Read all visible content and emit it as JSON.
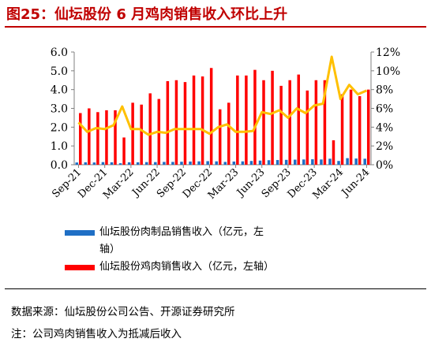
{
  "title": "图25：仙坛股份 6 月鸡肉销售收入环比上升",
  "colors": {
    "title": "#c00000",
    "blue_bar": "#1f6fc5",
    "red_bar": "#ff0000",
    "line": "#ffc000"
  },
  "legend": [
    {
      "label_line1": "仙坛股份肉制品销售收入（亿元，左",
      "label_line2": "轴）",
      "color": "#1f6fc5"
    },
    {
      "label_line1": "仙坛股份鸡肉销售收入（亿元，左轴）",
      "label_line2": "",
      "color": "#ff0000"
    }
  ],
  "source": "数据来源：仙坛股份公司公告、开源证券研究所",
  "note": "注：公司鸡肉销售收入为抵减后收入",
  "chart_data": {
    "type": "bar",
    "categories": [
      "Sep-21",
      "Oct-21",
      "Nov-21",
      "Dec-21",
      "Jan-22",
      "Feb-22",
      "Mar-22",
      "Apr-22",
      "May-22",
      "Jun-22",
      "Jul-22",
      "Aug-22",
      "Sep-22",
      "Oct-22",
      "Nov-22",
      "Dec-22",
      "Jan-23",
      "Feb-23",
      "Mar-23",
      "Apr-23",
      "May-23",
      "Jun-23",
      "Jul-23",
      "Aug-23",
      "Sep-23",
      "Oct-23",
      "Nov-23",
      "Dec-23",
      "Jan-24",
      "Feb-24",
      "Mar-24",
      "Apr-24",
      "May-24",
      "Jun-24"
    ],
    "xtick_labels": [
      "Sep-21",
      "Dec-21",
      "Mar-22",
      "Jun-22",
      "Sep-22",
      "Dec-22",
      "Mar-23",
      "Jun-23",
      "Sep-23",
      "Dec-23",
      "Mar-24",
      "Jun-24"
    ],
    "series": [
      {
        "name": "仙坛股份肉制品销售收入（亿元，左轴）",
        "axis": "left",
        "type": "bar",
        "values": [
          0.12,
          0.13,
          0.12,
          0.14,
          0.13,
          0.08,
          0.13,
          0.13,
          0.14,
          0.14,
          0.15,
          0.15,
          0.16,
          0.17,
          0.18,
          0.19,
          0.18,
          0.15,
          0.17,
          0.18,
          0.2,
          0.22,
          0.24,
          0.25,
          0.26,
          0.27,
          0.28,
          0.29,
          0.28,
          0.32,
          0.2,
          0.35,
          0.33,
          0.32
        ]
      },
      {
        "name": "仙坛股份鸡肉销售收入（亿元，左轴）",
        "axis": "left",
        "type": "bar",
        "values": [
          2.75,
          3.0,
          2.8,
          2.9,
          2.9,
          1.45,
          3.3,
          3.2,
          3.8,
          3.5,
          4.45,
          4.5,
          4.4,
          4.75,
          4.7,
          5.15,
          2.95,
          3.3,
          4.75,
          4.75,
          5.05,
          4.5,
          5.0,
          4.2,
          4.5,
          4.8,
          3.95,
          4.5,
          4.5,
          1.3,
          3.75,
          4.0,
          3.65,
          4.0
        ]
      },
      {
        "name": "",
        "axis": "right",
        "type": "line",
        "values": [
          4.5,
          3.5,
          3.9,
          3.8,
          4.2,
          6.2,
          3.8,
          3.8,
          3.2,
          3.5,
          3.4,
          3.8,
          3.8,
          3.8,
          3.8,
          3.3,
          4.0,
          4.3,
          3.5,
          3.5,
          3.6,
          5.6,
          5.4,
          5.8,
          5.0,
          6.0,
          5.5,
          6.3,
          6.5,
          11.5,
          7.0,
          8.5,
          7.5,
          7.9
        ]
      }
    ],
    "left_axis": {
      "ylim": [
        0,
        6
      ],
      "ticks": [
        "0.0",
        "1.0",
        "2.0",
        "3.0",
        "4.0",
        "5.0",
        "6.0"
      ]
    },
    "right_axis": {
      "ylim": [
        0,
        12
      ],
      "ticks": [
        "0%",
        "2%",
        "4%",
        "6%",
        "8%",
        "10%",
        "12%"
      ]
    },
    "grid": false,
    "legend_position": "bottom"
  }
}
